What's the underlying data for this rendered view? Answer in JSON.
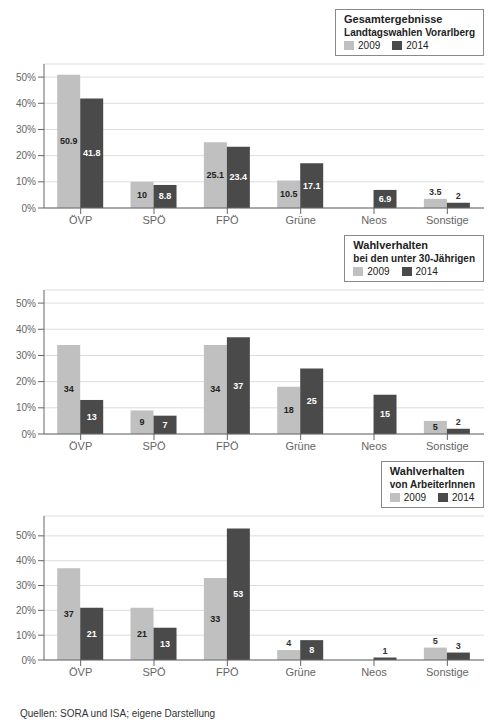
{
  "chart_data": [
    {
      "type": "bar",
      "title": "Gesamtergebnisse",
      "subtitle": "Landtagswahlen Vorarlberg",
      "categories": [
        "ÖVP",
        "SPÖ",
        "FPÖ",
        "Grüne",
        "Neos",
        "Sonstige"
      ],
      "series": [
        {
          "name": "2009",
          "color": "#c0c0c0",
          "values": [
            50.9,
            10.0,
            25.1,
            10.5,
            0,
            3.5
          ]
        },
        {
          "name": "2014",
          "color": "#4a4a4a",
          "values": [
            41.8,
            8.8,
            23.4,
            17.1,
            6.9,
            2.0
          ]
        }
      ],
      "ylim": [
        0,
        55
      ],
      "yticks": [
        {
          "value": 0,
          "label": "0%"
        },
        {
          "value": 10,
          "label": "10%"
        },
        {
          "value": 20,
          "label": "20%"
        },
        {
          "value": 30,
          "label": "30%"
        },
        {
          "value": 40,
          "label": "40%"
        },
        {
          "value": 50,
          "label": "50%"
        }
      ],
      "grid": true,
      "legend": "upper right",
      "data_labels": true
    },
    {
      "type": "bar",
      "title": "Wahlverhalten",
      "subtitle": "bei den unter 30-Jährigen",
      "categories": [
        "ÖVP",
        "SPÖ",
        "FPÖ",
        "Grüne",
        "Neos",
        "Sonstige"
      ],
      "series": [
        {
          "name": "2009",
          "color": "#c0c0c0",
          "values": [
            34,
            9,
            34,
            18,
            0,
            5
          ]
        },
        {
          "name": "2014",
          "color": "#4a4a4a",
          "values": [
            13,
            7,
            37,
            25,
            15,
            2
          ]
        }
      ],
      "ylim": [
        0,
        55
      ],
      "yticks": [
        {
          "value": 0,
          "label": "0%"
        },
        {
          "value": 10,
          "label": "10%"
        },
        {
          "value": 20,
          "label": "20%"
        },
        {
          "value": 30,
          "label": "30%"
        },
        {
          "value": 40,
          "label": "40%"
        },
        {
          "value": 50,
          "label": "50%"
        }
      ],
      "grid": true,
      "legend": "upper right",
      "data_labels": true
    },
    {
      "type": "bar",
      "title": "Wahlverhalten",
      "subtitle": "von ArbeiterInnen",
      "categories": [
        "ÖVP",
        "SPÖ",
        "FPÖ",
        "Grüne",
        "Neos",
        "Sonstige"
      ],
      "series": [
        {
          "name": "2009",
          "color": "#c0c0c0",
          "values": [
            37,
            21,
            33,
            4,
            0,
            5
          ]
        },
        {
          "name": "2014",
          "color": "#4a4a4a",
          "values": [
            21,
            13,
            53,
            8,
            1,
            3
          ]
        }
      ],
      "ylim": [
        0,
        58
      ],
      "yticks": [
        {
          "value": 0,
          "label": "0%"
        },
        {
          "value": 10,
          "label": "10%"
        },
        {
          "value": 20,
          "label": "20%"
        },
        {
          "value": 30,
          "label": "30%"
        },
        {
          "value": 40,
          "label": "40%"
        },
        {
          "value": 50,
          "label": "50%"
        }
      ],
      "grid": true,
      "legend": "upper right",
      "data_labels": true
    }
  ],
  "footer": "Quellen: SORA und ISA; eigene Darstellung"
}
